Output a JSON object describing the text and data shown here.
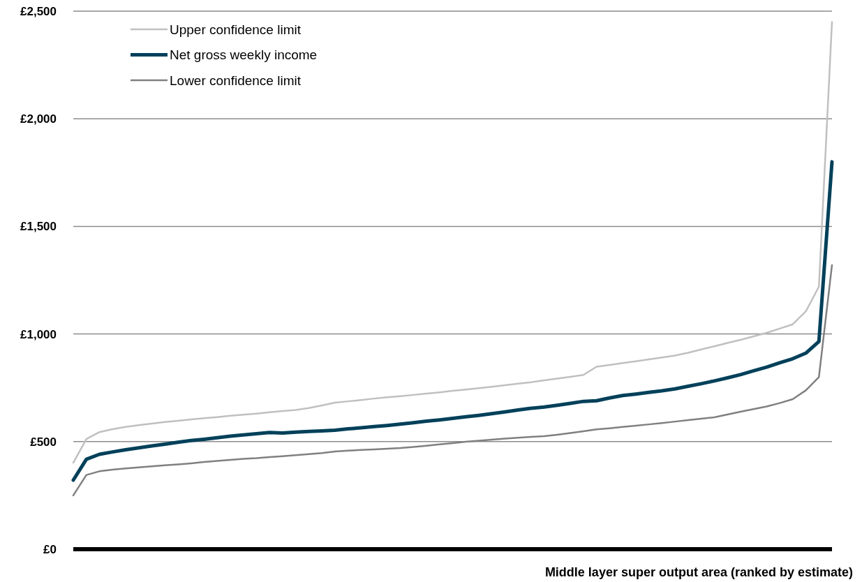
{
  "chart_data": {
    "type": "line",
    "xlabel": "Middle layer super output area (ranked by estimate)",
    "categories": [
      null,
      null,
      null,
      null,
      null,
      null,
      null,
      null,
      null,
      null,
      null,
      null,
      null,
      null,
      null,
      null,
      null,
      null,
      null,
      null,
      null,
      null,
      null,
      null,
      null,
      null,
      null,
      null,
      null,
      null,
      null,
      null,
      null,
      null,
      null,
      null,
      null,
      null,
      null,
      null,
      null,
      null,
      null,
      null,
      null,
      null,
      null,
      null,
      null,
      null,
      null,
      null,
      null,
      null,
      null,
      null,
      null,
      null,
      null
    ],
    "series": [
      {
        "name": "Upper confidence limit",
        "color": "#c0c0c0",
        "values": [
          402,
          512,
          544,
          558,
          568,
          576,
          584,
          591,
          597,
          603,
          609,
          614,
          620,
          625,
          630,
          636,
          642,
          647,
          656,
          668,
          681,
          687,
          693,
          700,
          706,
          711,
          717,
          723,
          729,
          736,
          742,
          748,
          755,
          762,
          769,
          776,
          785,
          793,
          801,
          810,
          848,
          856,
          865,
          873,
          882,
          891,
          900,
          913,
          928,
          943,
          958,
          973,
          989,
          1005,
          1025,
          1045,
          1105,
          1220,
          2450
        ]
      },
      {
        "name": "Net gross weekly income",
        "color": "#00405a",
        "values": [
          321,
          418,
          441,
          452,
          462,
          471,
          480,
          488,
          497,
          505,
          511,
          518,
          525,
          531,
          537,
          542,
          540,
          544,
          547,
          550,
          553,
          559,
          564,
          570,
          575,
          581,
          588,
          595,
          601,
          608,
          615,
          622,
          630,
          638,
          647,
          655,
          661,
          669,
          678,
          687,
          690,
          703,
          714,
          721,
          729,
          736,
          745,
          757,
          769,
          782,
          796,
          811,
          829,
          846,
          866,
          885,
          911,
          965,
          1800
        ]
      },
      {
        "name": "Lower confidence limit",
        "color": "#808080",
        "values": [
          250,
          345,
          362,
          370,
          375,
          380,
          385,
          390,
          394,
          399,
          405,
          410,
          415,
          420,
          423,
          428,
          432,
          437,
          442,
          447,
          454,
          458,
          461,
          464,
          467,
          470,
          475,
          481,
          487,
          493,
          499,
          504,
          509,
          514,
          518,
          522,
          525,
          532,
          540,
          548,
          557,
          562,
          568,
          574,
          580,
          586,
          593,
          600,
          606,
          613,
          626,
          639,
          651,
          663,
          679,
          697,
          738,
          800,
          1320
        ]
      }
    ],
    "ylim": [
      0,
      2500
    ],
    "yticks": [
      {
        "value": 0,
        "label": "£0"
      },
      {
        "value": 500,
        "label": "£500"
      },
      {
        "value": 1000,
        "label": "£1,000"
      },
      {
        "value": 1500,
        "label": "£1,500"
      },
      {
        "value": 2000,
        "label": "£2,000"
      },
      {
        "value": 2500,
        "label": "£2,500"
      }
    ],
    "grid": "y",
    "legend": "top left",
    "tick_labels": "y",
    "marker": "none",
    "line_style": "solid"
  }
}
